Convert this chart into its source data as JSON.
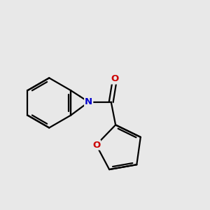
{
  "background_color": "#e8e8e8",
  "bond_color": "#000000",
  "N_color": "#0000cc",
  "O_color": "#cc0000",
  "bond_width": 1.6,
  "figsize": [
    3.0,
    3.0
  ],
  "dpi": 100,
  "xlim": [
    -2.6,
    2.2
  ],
  "ylim": [
    -1.6,
    1.6
  ]
}
